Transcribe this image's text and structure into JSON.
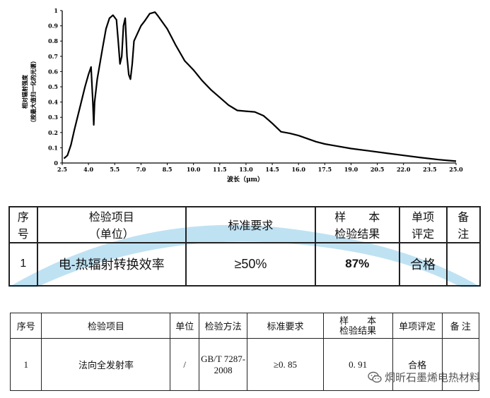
{
  "chart_data": {
    "type": "line",
    "xlabel": "波长（μm）",
    "ylabel_line1": "相对辐射强度",
    "ylabel_line2": "（按最大值归一化的光谱）",
    "xlim": [
      2.5,
      25.0
    ],
    "ylim": [
      0,
      1
    ],
    "xticks": [
      "2.5",
      "4.0",
      "5.5",
      "7.0",
      "8.5",
      "10.0",
      "11.5",
      "13.0",
      "14.5",
      "16.0",
      "17.5",
      "19.0",
      "20.5",
      "22.0",
      "23.5",
      "25.0"
    ],
    "yticks": [
      "0",
      "0.1",
      "0.2",
      "0.3",
      "0.4",
      "0.5",
      "0.6",
      "0.7",
      "0.8",
      "0.9",
      "1"
    ],
    "series": [
      {
        "x": [
          2.6,
          2.8,
          3.0,
          3.2,
          3.5,
          3.8,
          4.0,
          4.15,
          4.25,
          4.3,
          4.35,
          4.5,
          4.8,
          5.0,
          5.2,
          5.4,
          5.6,
          5.7,
          5.8,
          5.9,
          6.0,
          6.1,
          6.2,
          6.3,
          6.4,
          6.5,
          6.6,
          6.8,
          7.0,
          7.2,
          7.5,
          7.8,
          8.0,
          8.5,
          9.0,
          9.5,
          10.0,
          10.5,
          11.0,
          11.5,
          12.0,
          12.5,
          13.0,
          13.5,
          14.0,
          14.5,
          15.0,
          15.5,
          16.0,
          16.5,
          17.0,
          17.5,
          18.0,
          19.0,
          20.0,
          21.0,
          22.0,
          23.0,
          24.0,
          25.0
        ],
        "y": [
          0.03,
          0.05,
          0.12,
          0.22,
          0.36,
          0.5,
          0.58,
          0.63,
          0.4,
          0.25,
          0.4,
          0.55,
          0.75,
          0.88,
          0.95,
          0.97,
          0.94,
          0.8,
          0.65,
          0.7,
          0.9,
          0.95,
          0.7,
          0.58,
          0.55,
          0.65,
          0.8,
          0.85,
          0.9,
          0.93,
          0.98,
          0.99,
          0.96,
          0.88,
          0.77,
          0.67,
          0.61,
          0.54,
          0.48,
          0.43,
          0.38,
          0.345,
          0.34,
          0.335,
          0.31,
          0.26,
          0.205,
          0.195,
          0.18,
          0.16,
          0.14,
          0.125,
          0.115,
          0.095,
          0.08,
          0.065,
          0.05,
          0.035,
          0.022,
          0.012
        ]
      }
    ]
  },
  "table1": {
    "headers": {
      "seq": "序\n号",
      "item": "检验项目\n（单位）",
      "req": "标准要求",
      "result": "样　　本\n检验结果",
      "eval": "单项\n评定",
      "note": "备\n注"
    },
    "row": {
      "seq": "1",
      "item": "电-热辐射转换效率",
      "req": "≥50%",
      "result": "87%",
      "eval": "合格",
      "note": ""
    }
  },
  "table2": {
    "headers": {
      "seq": "序号",
      "item": "检验项目",
      "unit": "单位",
      "method": "检验方法",
      "req": "标准要求",
      "result": "样　　本\n检验结果",
      "eval": "单项评定",
      "note": "备 注"
    },
    "row": {
      "seq": "1",
      "item": "法向全发射率",
      "unit": "/",
      "method": "GB/T 7287-\n2008",
      "req": "≥0. 85",
      "result": "0. 91",
      "eval": "合格",
      "note": ""
    }
  },
  "watermark": {
    "text": "烔昕石墨烯电热材料",
    "icon": "wechat-icon"
  }
}
